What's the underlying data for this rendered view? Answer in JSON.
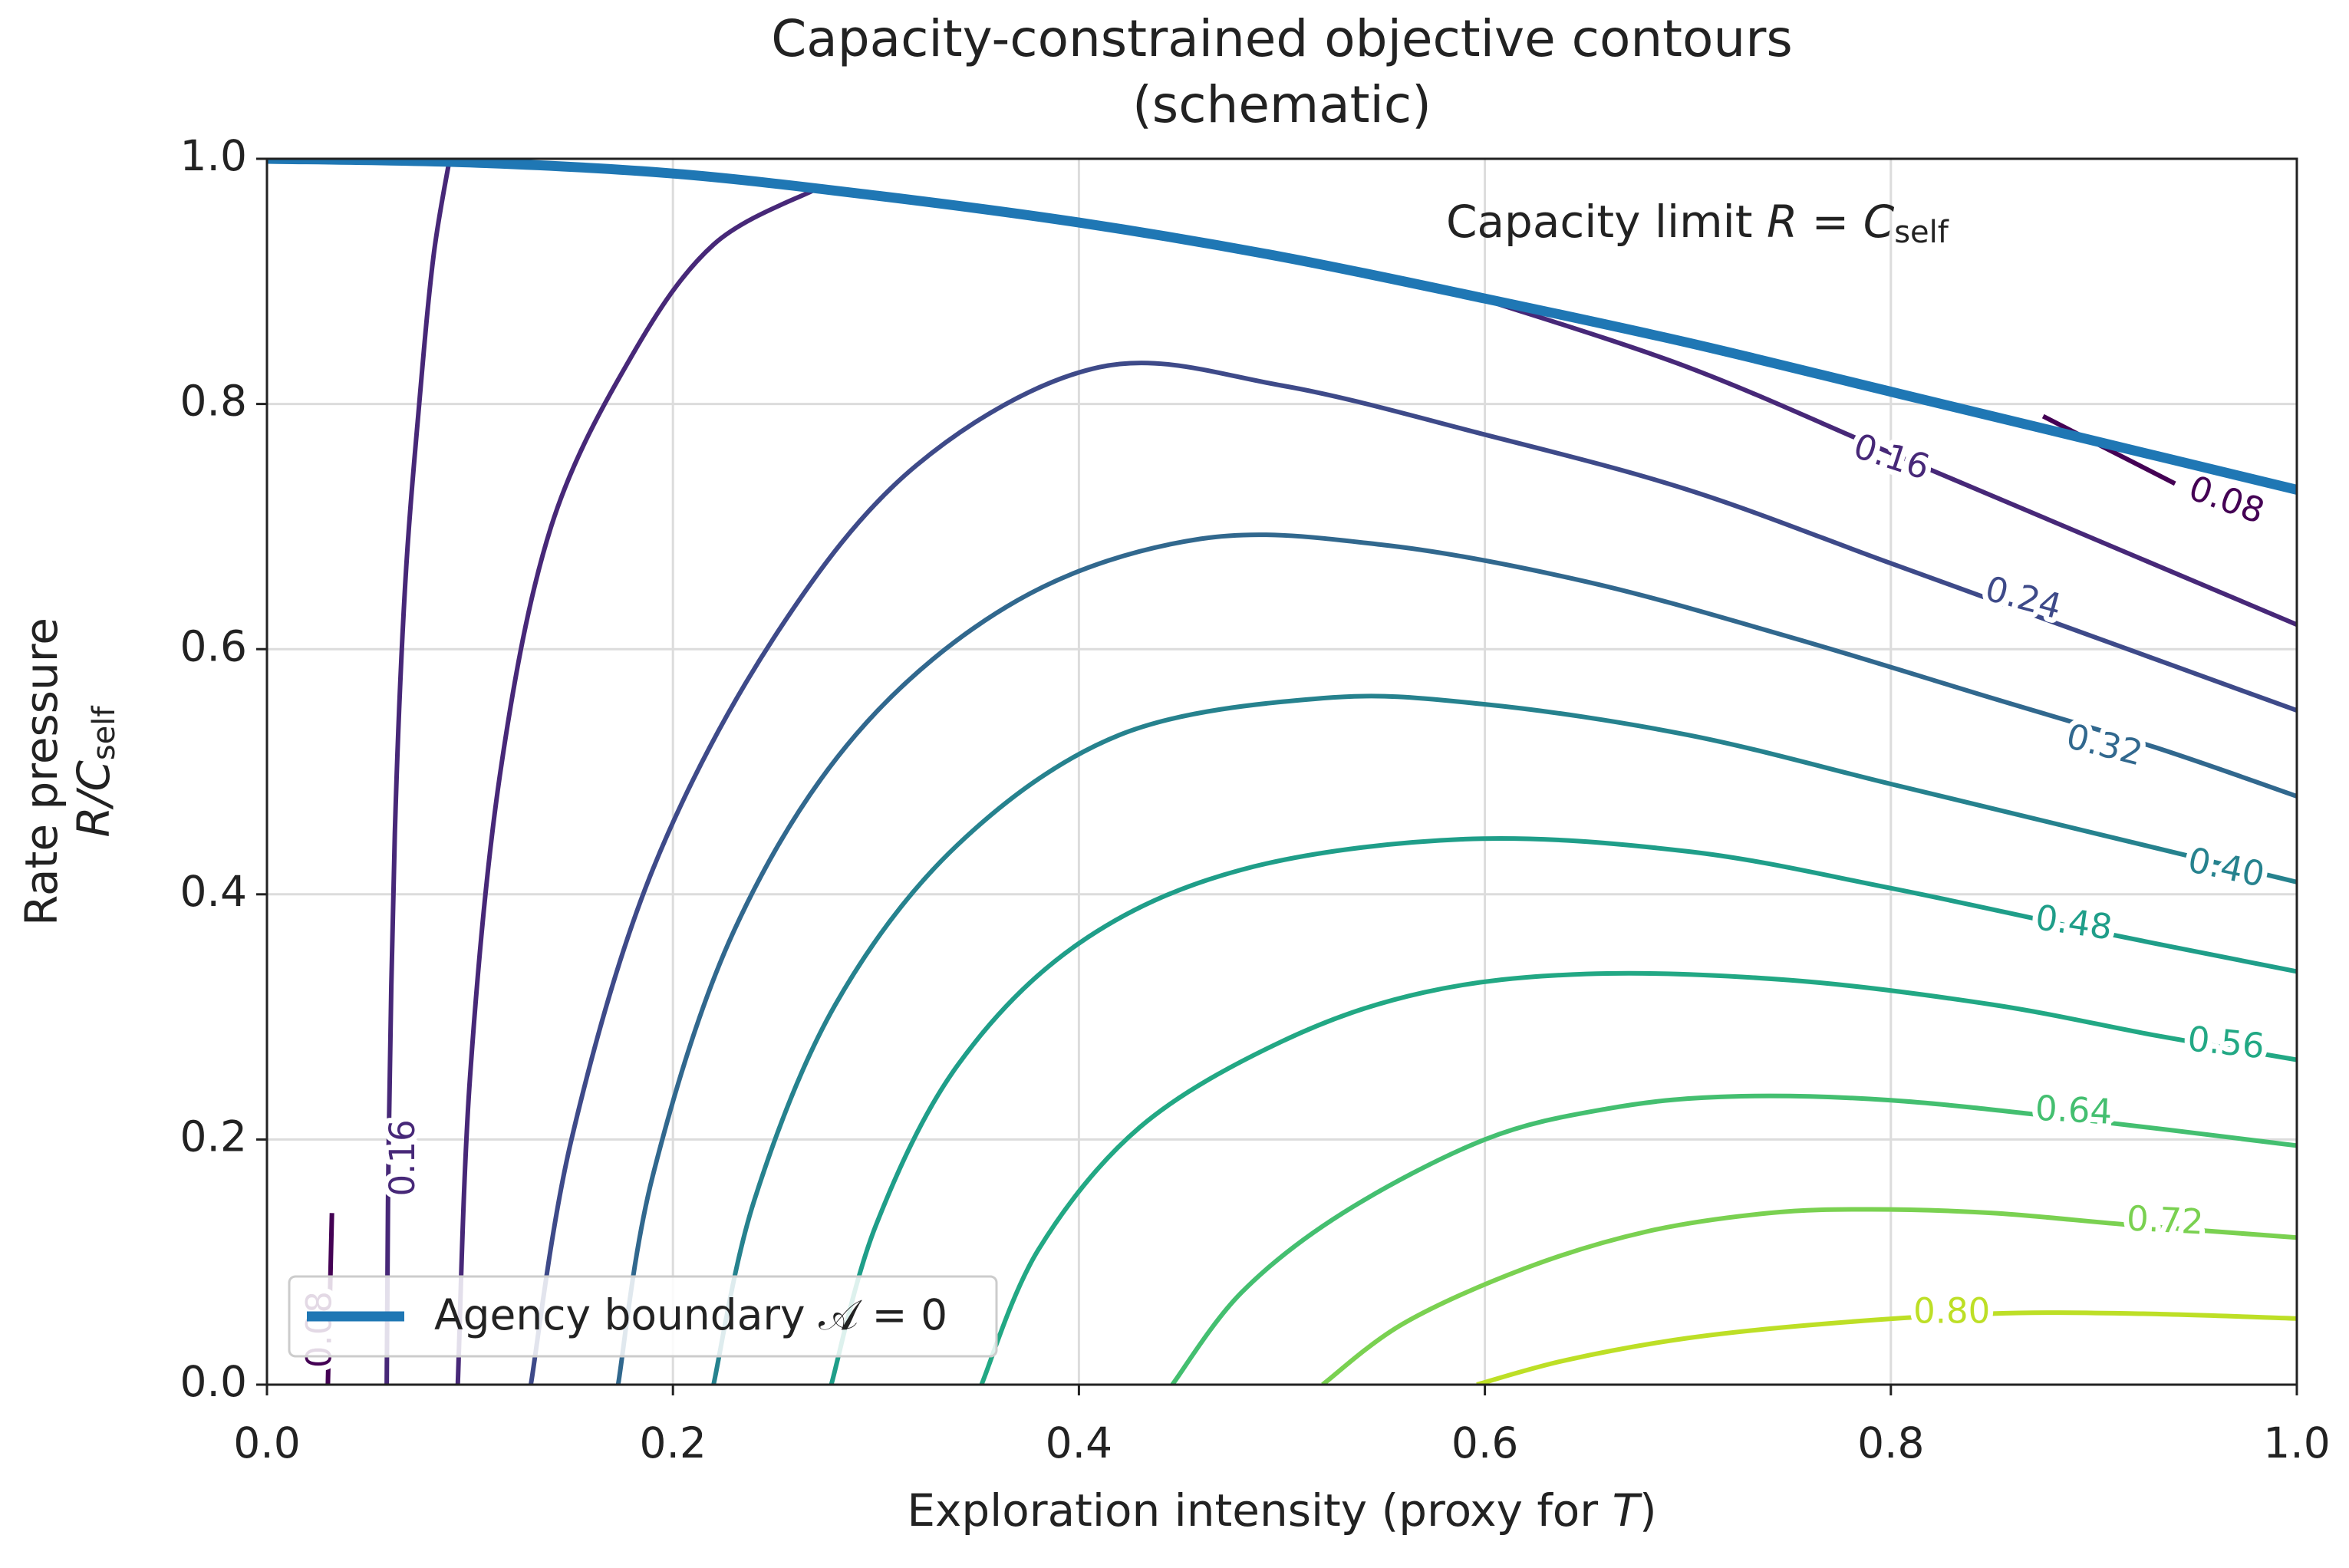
{
  "chart_data": {
    "type": "contour",
    "title": [
      "Capacity-constrained objective contours",
      "(schematic)"
    ],
    "xlabel": {
      "text": "Exploration intensity (proxy for ",
      "math": "T",
      "end": ")"
    },
    "ylabel": {
      "text": "Rate pressure",
      "math": "R/C",
      "sub": "self"
    },
    "annotation": {
      "text": "Capacity limit ",
      "math": "R = C",
      "sub": "self"
    },
    "xlim": [
      0,
      1
    ],
    "ylim": [
      0,
      1
    ],
    "xticks": [
      {
        "value": 0,
        "label": "0.0"
      },
      0.2,
      0.4,
      0.6,
      0.8,
      {
        "value": 1,
        "label": "1.0"
      }
    ],
    "yticks": [
      {
        "value": 0,
        "label": "0.0"
      },
      0.2,
      0.4,
      0.6,
      0.8,
      {
        "value": 1,
        "label": "1.0"
      }
    ],
    "grid": true,
    "legend": "lower left",
    "contours": [
      {
        "level": 0.08,
        "color": "#440154",
        "x": [
          0.03,
          0.031,
          0.032,
          null,
          0.875,
          0.94
        ],
        "y": [
          0,
          0.07,
          0.14,
          null,
          0.79,
          0.735
        ]
      },
      {
        "level": 0.16,
        "color": "#472878",
        "x": [
          0.059,
          0.06,
          0.063,
          0.068,
          0.075,
          0.082,
          0.09,
          null,
          0.094,
          0.1,
          0.115,
          0.14,
          0.18,
          0.22,
          0.27,
          null,
          0.6,
          0.7,
          0.8,
          0.9,
          1.0
        ],
        "y": [
          0,
          0.2,
          0.45,
          0.65,
          0.8,
          0.92,
          1.0,
          null,
          0,
          0.25,
          0.5,
          0.7,
          0.84,
          0.93,
          0.975,
          null,
          0.885,
          0.83,
          0.76,
          0.69,
          0.62
        ]
      },
      {
        "level": 0.24,
        "color": "#3e4a89",
        "x": [
          0.13,
          0.15,
          0.19,
          0.25,
          0.32,
          0.41,
          0.5,
          0.6,
          0.7,
          0.8,
          0.9,
          1.0
        ],
        "y": [
          0,
          0.2,
          0.42,
          0.61,
          0.75,
          0.83,
          0.815,
          0.775,
          0.73,
          0.67,
          0.61,
          0.55
        ]
      },
      {
        "level": 0.32,
        "color": "#31688e",
        "x": [
          0.173,
          0.19,
          0.23,
          0.29,
          0.37,
          0.46,
          0.55,
          0.65,
          0.75,
          0.85,
          0.93,
          1.0
        ],
        "y": [
          0,
          0.17,
          0.37,
          0.53,
          0.64,
          0.69,
          0.685,
          0.655,
          0.61,
          0.56,
          0.52,
          0.48
        ]
      },
      {
        "level": {
          "value": 0.4,
          "label": "0.40"
        },
        "color": "#26828e",
        "x": [
          0.22,
          0.24,
          0.28,
          0.34,
          0.42,
          0.52,
          0.6,
          0.7,
          0.8,
          0.9,
          1.0
        ],
        "y": [
          0,
          0.15,
          0.31,
          0.44,
          0.53,
          0.56,
          0.555,
          0.53,
          0.49,
          0.45,
          0.41
        ]
      },
      {
        "level": 0.48,
        "color": "#1f9e89",
        "x": [
          0.278,
          0.3,
          0.34,
          0.4,
          0.48,
          0.59,
          0.7,
          0.8,
          0.9,
          1.0
        ],
        "y": [
          0,
          0.13,
          0.26,
          0.36,
          0.42,
          0.445,
          0.435,
          0.405,
          0.37,
          0.337
        ]
      },
      {
        "level": 0.56,
        "color": "#22a884",
        "x": [
          0.352,
          0.38,
          0.43,
          0.5,
          0.57,
          0.65,
          0.75,
          0.85,
          0.93,
          1.0
        ],
        "y": [
          0,
          0.11,
          0.21,
          0.28,
          0.32,
          0.335,
          0.33,
          0.31,
          0.285,
          0.265
        ]
      },
      {
        "level": 0.64,
        "color": "#44bf70",
        "x": [
          0.446,
          0.48,
          0.53,
          0.6,
          0.66,
          0.72,
          0.8,
          0.9,
          1.0
        ],
        "y": [
          0,
          0.075,
          0.14,
          0.2,
          0.225,
          0.235,
          0.232,
          0.215,
          0.195
        ]
      },
      {
        "level": 0.72,
        "color": "#7ad151",
        "x": [
          0.52,
          0.56,
          0.62,
          0.68,
          0.74,
          0.79,
          0.85,
          0.92,
          1.0
        ],
        "y": [
          0,
          0.05,
          0.095,
          0.125,
          0.14,
          0.143,
          0.14,
          0.13,
          0.12
        ]
      },
      {
        "level": {
          "value": 0.8,
          "label": "0.80"
        },
        "color": "#bddf26",
        "x": [
          0.596,
          0.64,
          0.7,
          0.77,
          0.85,
          0.92,
          1.0
        ],
        "y": [
          0,
          0.02,
          0.038,
          0.05,
          0.058,
          0.058,
          0.054
        ]
      }
    ],
    "series": [
      {
        "name": "Agency boundary 𝒜 = 0",
        "color": "#1f77b4",
        "x": [
          0,
          0.1,
          0.2,
          0.3,
          0.4,
          0.5,
          0.6,
          0.7,
          0.8,
          0.9,
          1.0
        ],
        "y": [
          1.0,
          0.997,
          0.988,
          0.97,
          0.948,
          0.92,
          0.886,
          0.85,
          0.81,
          0.77,
          0.73
        ]
      }
    ]
  }
}
